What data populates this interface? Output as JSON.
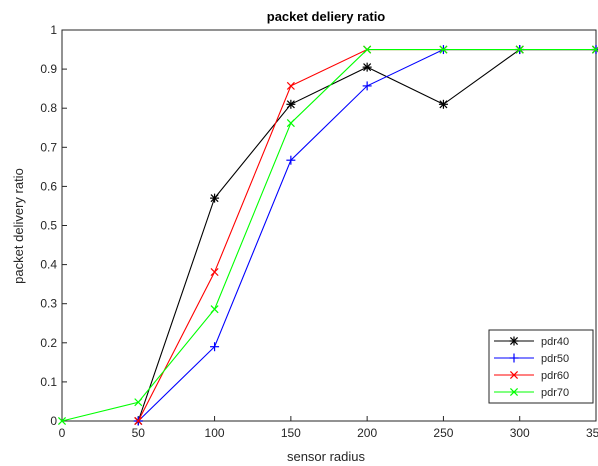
{
  "chart_data": {
    "type": "line",
    "title": "packet deliery ratio",
    "xlabel": "sensor radius",
    "ylabel": "packet delivery ratio",
    "xlim": [
      0,
      350
    ],
    "ylim": [
      0,
      1
    ],
    "x_ticks": [
      "0",
      "50",
      "100",
      "150",
      "200",
      "250",
      "300",
      "350"
    ],
    "y_ticks": [
      "0",
      "0.1",
      "0.2",
      "0.3",
      "0.4",
      "0.5",
      "0.6",
      "0.7",
      "0.8",
      "0.9",
      "1"
    ],
    "grid": false,
    "legend_position": "bottom-right",
    "series": [
      {
        "name": "pdr40",
        "color": "#000000",
        "marker": "asterisk",
        "x": [
          50,
          100,
          150,
          200,
          250,
          300,
          350
        ],
        "y": [
          0,
          0.57,
          0.81,
          0.905,
          0.81,
          0.95,
          0.95
        ]
      },
      {
        "name": "pdr50",
        "color": "#0000ff",
        "marker": "plus",
        "x": [
          50,
          100,
          150,
          200,
          250,
          300,
          350
        ],
        "y": [
          0,
          0.19,
          0.667,
          0.857,
          0.95,
          0.95,
          0.95
        ]
      },
      {
        "name": "pdr60",
        "color": "#ff0000",
        "marker": "x",
        "x": [
          50,
          100,
          150,
          200,
          250,
          300,
          350
        ],
        "y": [
          0,
          0.381,
          0.857,
          0.95,
          0.95,
          0.95,
          0.95
        ]
      },
      {
        "name": "pdr70",
        "color": "#00ff00",
        "marker": "x",
        "x": [
          0,
          50,
          100,
          150,
          200,
          250,
          300,
          350
        ],
        "y": [
          0,
          0.048,
          0.286,
          0.762,
          0.95,
          0.95,
          0.95,
          0.95
        ]
      }
    ]
  }
}
